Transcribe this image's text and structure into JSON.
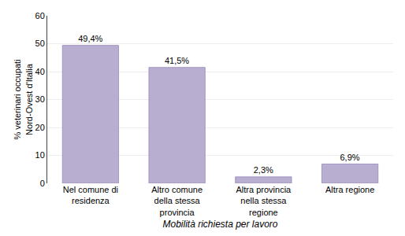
{
  "chart_data": {
    "type": "bar",
    "categories": [
      "Nel comune di\nresidenza",
      "Altro comune\ndella stessa\nprovincia",
      "Altra provincia\nnella stessa\nregione",
      "Altra regione"
    ],
    "values": [
      49.4,
      41.5,
      2.3,
      6.9
    ],
    "value_labels": [
      "49,4%",
      "41,5%",
      "2,3%",
      "6,9%"
    ],
    "data_labels": true,
    "color": "#b8aed0",
    "xlabel": "Mobilità richiesta per lavoro",
    "ylabel": "% veterinari occupati\nNord-Ovest d'Italia",
    "ylim": [
      0,
      60
    ],
    "yticks": [
      0,
      10,
      20,
      30,
      40,
      50,
      60
    ],
    "grid": true
  }
}
